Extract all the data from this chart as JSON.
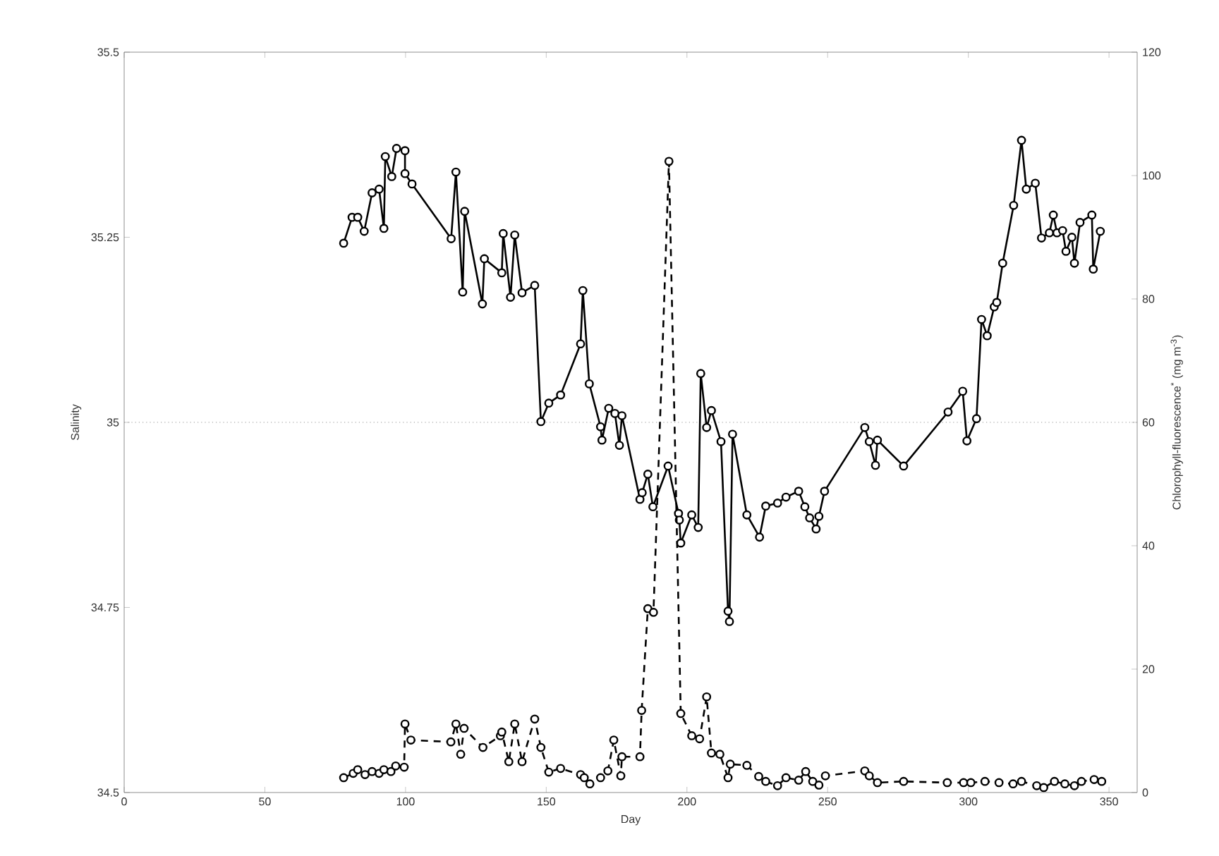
{
  "chart_data": {
    "type": "line",
    "xlabel": "Day",
    "ylabel": "Salinity",
    "y2label": "Chlorophyll-fluorescence$^{*}$ (mg m$^{-3}$)",
    "xlim": [
      0,
      360
    ],
    "xticks": [
      0,
      50,
      100,
      150,
      200,
      250,
      300,
      350
    ],
    "ylim": [
      34.5,
      35.5
    ],
    "yticks": [
      34.5,
      34.75,
      35,
      35.25,
      35.5
    ],
    "y2lim": [
      0,
      120
    ],
    "y2ticks": [
      0,
      20,
      40,
      60,
      80,
      100,
      120
    ],
    "marker": "circle",
    "ref_lines": [
      {
        "axis": "y",
        "value": 35,
        "color": "#999999",
        "line_style": "dotted"
      }
    ],
    "series": [
      {
        "color": "#000000",
        "line_style": "solid",
        "x": [
          78.0,
          81,
          83,
          85.3,
          88.1,
          90.6,
          92.3,
          92.8,
          95.1,
          96.8,
          99.8,
          99.8,
          102.3,
          116.2,
          117.9,
          120.3,
          121,
          127.3,
          128,
          134.2,
          134.7,
          137.3,
          138.8,
          141.4,
          145.9,
          148.1,
          150.9,
          155.1,
          162.2,
          163,
          165.3,
          169.3,
          169.8,
          172.2,
          174.4,
          176,
          176.9,
          183.3,
          184.1,
          186.1,
          187.9,
          193.3,
          197,
          197.3,
          197.8,
          201.7,
          204,
          204.9,
          207,
          208.7,
          212.1,
          214.6,
          215.1,
          216.2,
          221.3,
          225.8,
          228,
          232.2,
          235.2,
          239.7,
          241.9,
          243.6,
          245.9,
          246.9,
          248.9,
          263.2,
          264.8,
          267,
          267.7,
          277,
          292.8,
          298,
          299.5,
          302.9,
          304.7,
          306.7,
          309.2,
          310.1,
          312.2,
          316.1,
          318.9,
          320.6,
          323.8,
          326,
          328.8,
          330.2,
          331.5,
          333.5,
          334.7,
          336.8,
          337.7,
          339.7,
          343.9,
          344.4,
          346.9
        ],
        "values": [
          35.242,
          35.277,
          35.277,
          35.258,
          35.31,
          35.315,
          35.262,
          35.359,
          35.332,
          35.37,
          35.367,
          35.336,
          35.322,
          35.248,
          35.338,
          35.176,
          35.285,
          35.16,
          35.221,
          35.202,
          35.255,
          35.169,
          35.253,
          35.175,
          35.185,
          35.001,
          35.026,
          35.037,
          35.106,
          35.178,
          35.052,
          34.994,
          34.976,
          35.019,
          35.012,
          34.969,
          35.009,
          34.896,
          34.905,
          34.93,
          34.886,
          34.941,
          34.877,
          34.868,
          34.837,
          34.875,
          34.858,
          35.066,
          34.993,
          35.016,
          34.974,
          34.745,
          34.731,
          34.984,
          34.875,
          34.845,
          34.887,
          34.891,
          34.899,
          34.907,
          34.886,
          34.871,
          34.856,
          34.873,
          34.907,
          34.993,
          34.974,
          34.942,
          34.976,
          34.941,
          35.014,
          35.042,
          34.975,
          35.005,
          35.139,
          35.117,
          35.156,
          35.162,
          35.215,
          35.293,
          35.381,
          35.315,
          35.323,
          35.249,
          35.256,
          35.28,
          35.256,
          35.259,
          35.231,
          35.25,
          35.215,
          35.27,
          35.28,
          35.207,
          35.258
        ]
      },
      {
        "color": "#000000",
        "line_style": "dashed",
        "axis": "y2",
        "x": [
          78,
          81.4,
          83,
          85.6,
          88.1,
          90.6,
          92.3,
          94.8,
          96.5,
          99.5,
          99.8,
          101.9,
          116.1,
          117.9,
          119.6,
          120.8,
          127.5,
          133.7,
          134.2,
          136.7,
          138.8,
          141.4,
          145.9,
          148.1,
          150.9,
          155.1,
          162.2,
          163.5,
          165.5,
          169.3,
          171.9,
          174,
          176.5,
          176.9,
          183.3,
          183.9,
          186.1,
          188.1,
          193.6,
          197.8,
          201.7,
          204.5,
          207,
          208.7,
          211.7,
          214.6,
          215.4,
          221.3,
          225.5,
          228,
          232.2,
          235.2,
          239.7,
          242.2,
          244.7,
          246.9,
          249.2,
          263.2,
          264.8,
          267.7,
          277,
          292.5,
          298.3,
          300.9,
          305.9,
          310.9,
          315.9,
          318.9,
          324.3,
          326.8,
          330.6,
          334.3,
          337.7,
          340.2,
          344.7,
          347.4
        ],
        "values": [
          2.4,
          3.1,
          3.7,
          2.9,
          3.4,
          3.1,
          3.7,
          3.4,
          4.3,
          4.1,
          11.1,
          8.5,
          8.2,
          11.1,
          6.2,
          10.4,
          7.3,
          9.2,
          9.8,
          5.0,
          11.1,
          5.0,
          11.9,
          7.3,
          3.3,
          3.9,
          2.9,
          2.4,
          1.4,
          2.4,
          3.5,
          8.5,
          2.7,
          5.8,
          5.8,
          13.3,
          29.8,
          29.2,
          102.3,
          12.8,
          9.2,
          8.7,
          15.5,
          6.4,
          6.2,
          2.4,
          4.6,
          4.4,
          2.6,
          1.8,
          1.1,
          2.4,
          2.0,
          3.4,
          1.8,
          1.2,
          2.7,
          3.5,
          2.7,
          1.6,
          1.8,
          1.6,
          1.6,
          1.6,
          1.8,
          1.6,
          1.4,
          1.8,
          1.1,
          0.8,
          1.8,
          1.4,
          1.1,
          1.8,
          2.1,
          1.8
        ]
      }
    ]
  }
}
